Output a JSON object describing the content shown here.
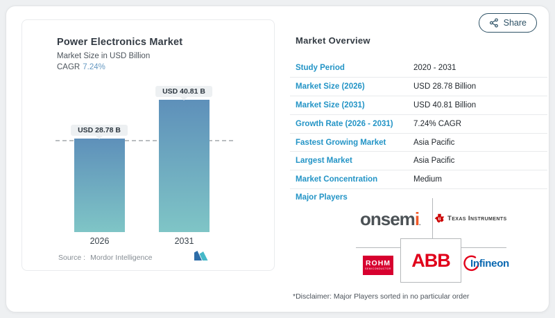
{
  "share": {
    "label": "Share"
  },
  "chart": {
    "title": "Power Electronics Market",
    "subtitle": "Market Size in USD Billion",
    "cagr_label": "CAGR",
    "cagr_value": "7.24%",
    "source_label": "Source :",
    "source_value": "Mordor Intelligence"
  },
  "chart_data": {
    "type": "bar",
    "title": "Power Electronics Market",
    "ylabel": "Market Size in USD Billion",
    "categories": [
      "2026",
      "2031"
    ],
    "values": [
      28.78,
      40.81
    ],
    "bar_labels": [
      "USD 28.78 B",
      "USD 40.81 B"
    ],
    "cagr": "7.24%",
    "unit": "USD Billion",
    "reference_line_value": 28.78,
    "grid": false,
    "legend": false
  },
  "overview": {
    "heading": "Market Overview",
    "rows": [
      {
        "label": "Study Period",
        "value": "2020 - 2031"
      },
      {
        "label": "Market Size (2026)",
        "value": "USD 28.78 Billion"
      },
      {
        "label": "Market Size (2031)",
        "value": "USD 40.81 Billion"
      },
      {
        "label": "Growth Rate (2026 - 2031)",
        "value": "7.24% CAGR"
      },
      {
        "label": "Fastest Growing Market",
        "value": "Asia Pacific"
      },
      {
        "label": "Largest Market",
        "value": "Asia Pacific"
      },
      {
        "label": "Market Concentration",
        "value": "Medium"
      }
    ],
    "major_players_label": "Major Players",
    "players": {
      "onsemi": {
        "main": "onsem",
        "accent": "i",
        "tm": "."
      },
      "texas_instruments": {
        "name": "Texas Instruments"
      },
      "rohm": {
        "name": "ROHM",
        "subtitle": "SEMICONDUCTOR"
      },
      "abb": {
        "name": "ABB"
      },
      "infineon": {
        "name": "Infineon"
      }
    },
    "disclaimer": "*Disclaimer: Major Players sorted in no particular order"
  },
  "colors": {
    "accent_blue": "#2394c6",
    "muted_blue": "#6699c2",
    "bar_gradient_top": "#5e90ba",
    "bar_gradient_bottom": "#7fc5c6",
    "share_teal": "#2e5266",
    "onsemi_gray": "#4c5256",
    "onsemi_accent": "#f15a29",
    "ti_red": "#cc0000",
    "rohm_red": "#d7002f",
    "abb_red": "#e0001a",
    "infineon_blue": "#0a68b1",
    "infineon_red": "#e2001a",
    "mordor_dark_blue": "#2d6da8",
    "mordor_teal": "#46b8c8"
  }
}
